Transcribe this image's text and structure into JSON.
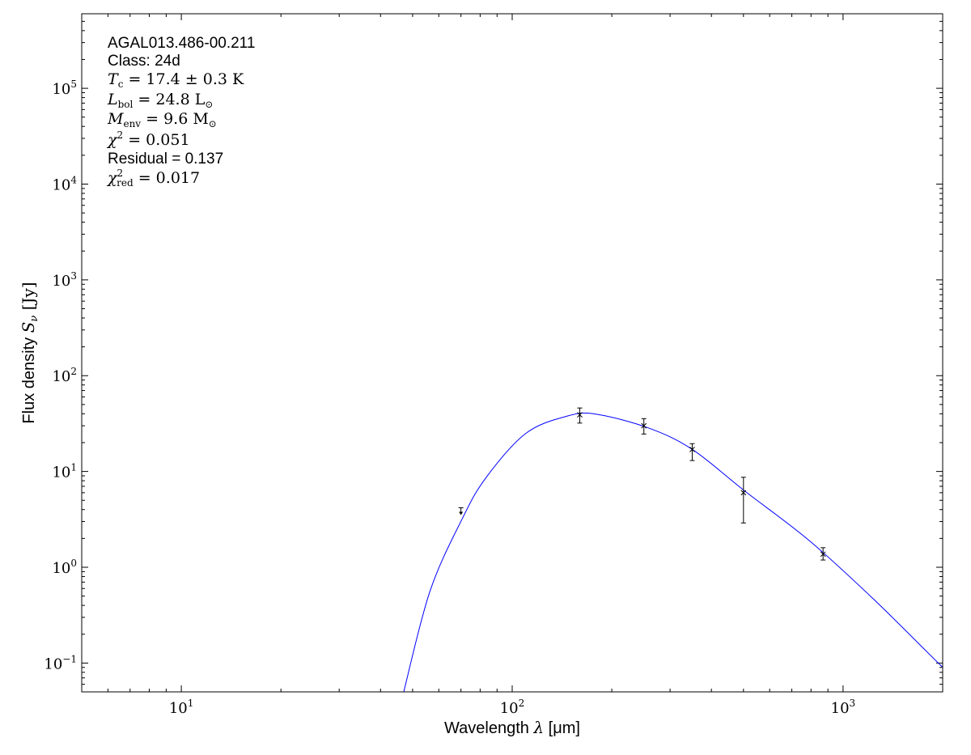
{
  "chart_data": {
    "type": "scatter",
    "xscale": "log",
    "yscale": "log",
    "xlim": [
      5,
      2000
    ],
    "ylim": [
      0.05,
      600000
    ],
    "xlabel": {
      "text": "Wavelength ",
      "sym": "λ",
      "unit": " [μm]"
    },
    "ylabel": {
      "text": "Flux density ",
      "sym": "S",
      "sub": "ν",
      "unit": " [Jy]"
    },
    "x_ticks": [
      {
        "value": 10,
        "base": "10",
        "exp": "1"
      },
      {
        "value": 100,
        "base": "10",
        "exp": "2"
      },
      {
        "value": 1000,
        "base": "10",
        "exp": "3"
      }
    ],
    "y_ticks": [
      {
        "value": 0.1,
        "base": "10",
        "exp": "−1"
      },
      {
        "value": 1,
        "base": "10",
        "exp": "0"
      },
      {
        "value": 10,
        "base": "10",
        "exp": "1"
      },
      {
        "value": 100,
        "base": "10",
        "exp": "2"
      },
      {
        "value": 1000,
        "base": "10",
        "exp": "3"
      },
      {
        "value": 10000,
        "base": "10",
        "exp": "4"
      },
      {
        "value": 100000,
        "base": "10",
        "exp": "5"
      }
    ],
    "grid": false,
    "annotation": {
      "name": "AGAL013.486-00.211",
      "class": "Class: 24d",
      "tc": {
        "sym": "T",
        "sub": "c",
        "rest": " = 17.4 ± 0.3 K"
      },
      "lbol": {
        "sym": "L",
        "sub": "bol",
        "rest": " = 24.8 L",
        "restsub": "⊙"
      },
      "menv": {
        "sym": "M",
        "sub": "env",
        "rest": " = 9.6 M",
        "restsub": "⊙"
      },
      "chi2": {
        "sym": "χ",
        "sup": "2",
        "rest": " = 0.051"
      },
      "residual": "Residual = 0.137",
      "chi2red": {
        "sym": "χ",
        "sup": "2",
        "sub": "red",
        "rest": " = 0.017"
      }
    },
    "points": [
      {
        "x": 160,
        "y": 39,
        "yerr_low": 32,
        "yerr_high": 46
      },
      {
        "x": 250,
        "y": 30,
        "yerr_low": 24.6,
        "yerr_high": 35.6
      },
      {
        "x": 350,
        "y": 17,
        "yerr_low": 13,
        "yerr_high": 19.5
      },
      {
        "x": 500,
        "y": 6,
        "yerr_low": 2.9,
        "yerr_high": 8.7
      },
      {
        "x": 870,
        "y": 1.37,
        "yerr_low": 1.19,
        "yerr_high": 1.6
      }
    ],
    "upper_limits": [
      {
        "x": 70,
        "y": 4.1
      }
    ],
    "model_curve": {
      "color": "#0000ff",
      "x": [
        47,
        56.4,
        70.6,
        83.5,
        110,
        146,
        178,
        257,
        350,
        503,
        790,
        1240,
        1940,
        2000
      ],
      "y": [
        0.05,
        0.56,
        3.2,
        8.7,
        25,
        37.7,
        39.8,
        28.6,
        17,
        6.3,
        1.9,
        0.46,
        0.1,
        0.093
      ]
    },
    "point_color": "#000000"
  }
}
